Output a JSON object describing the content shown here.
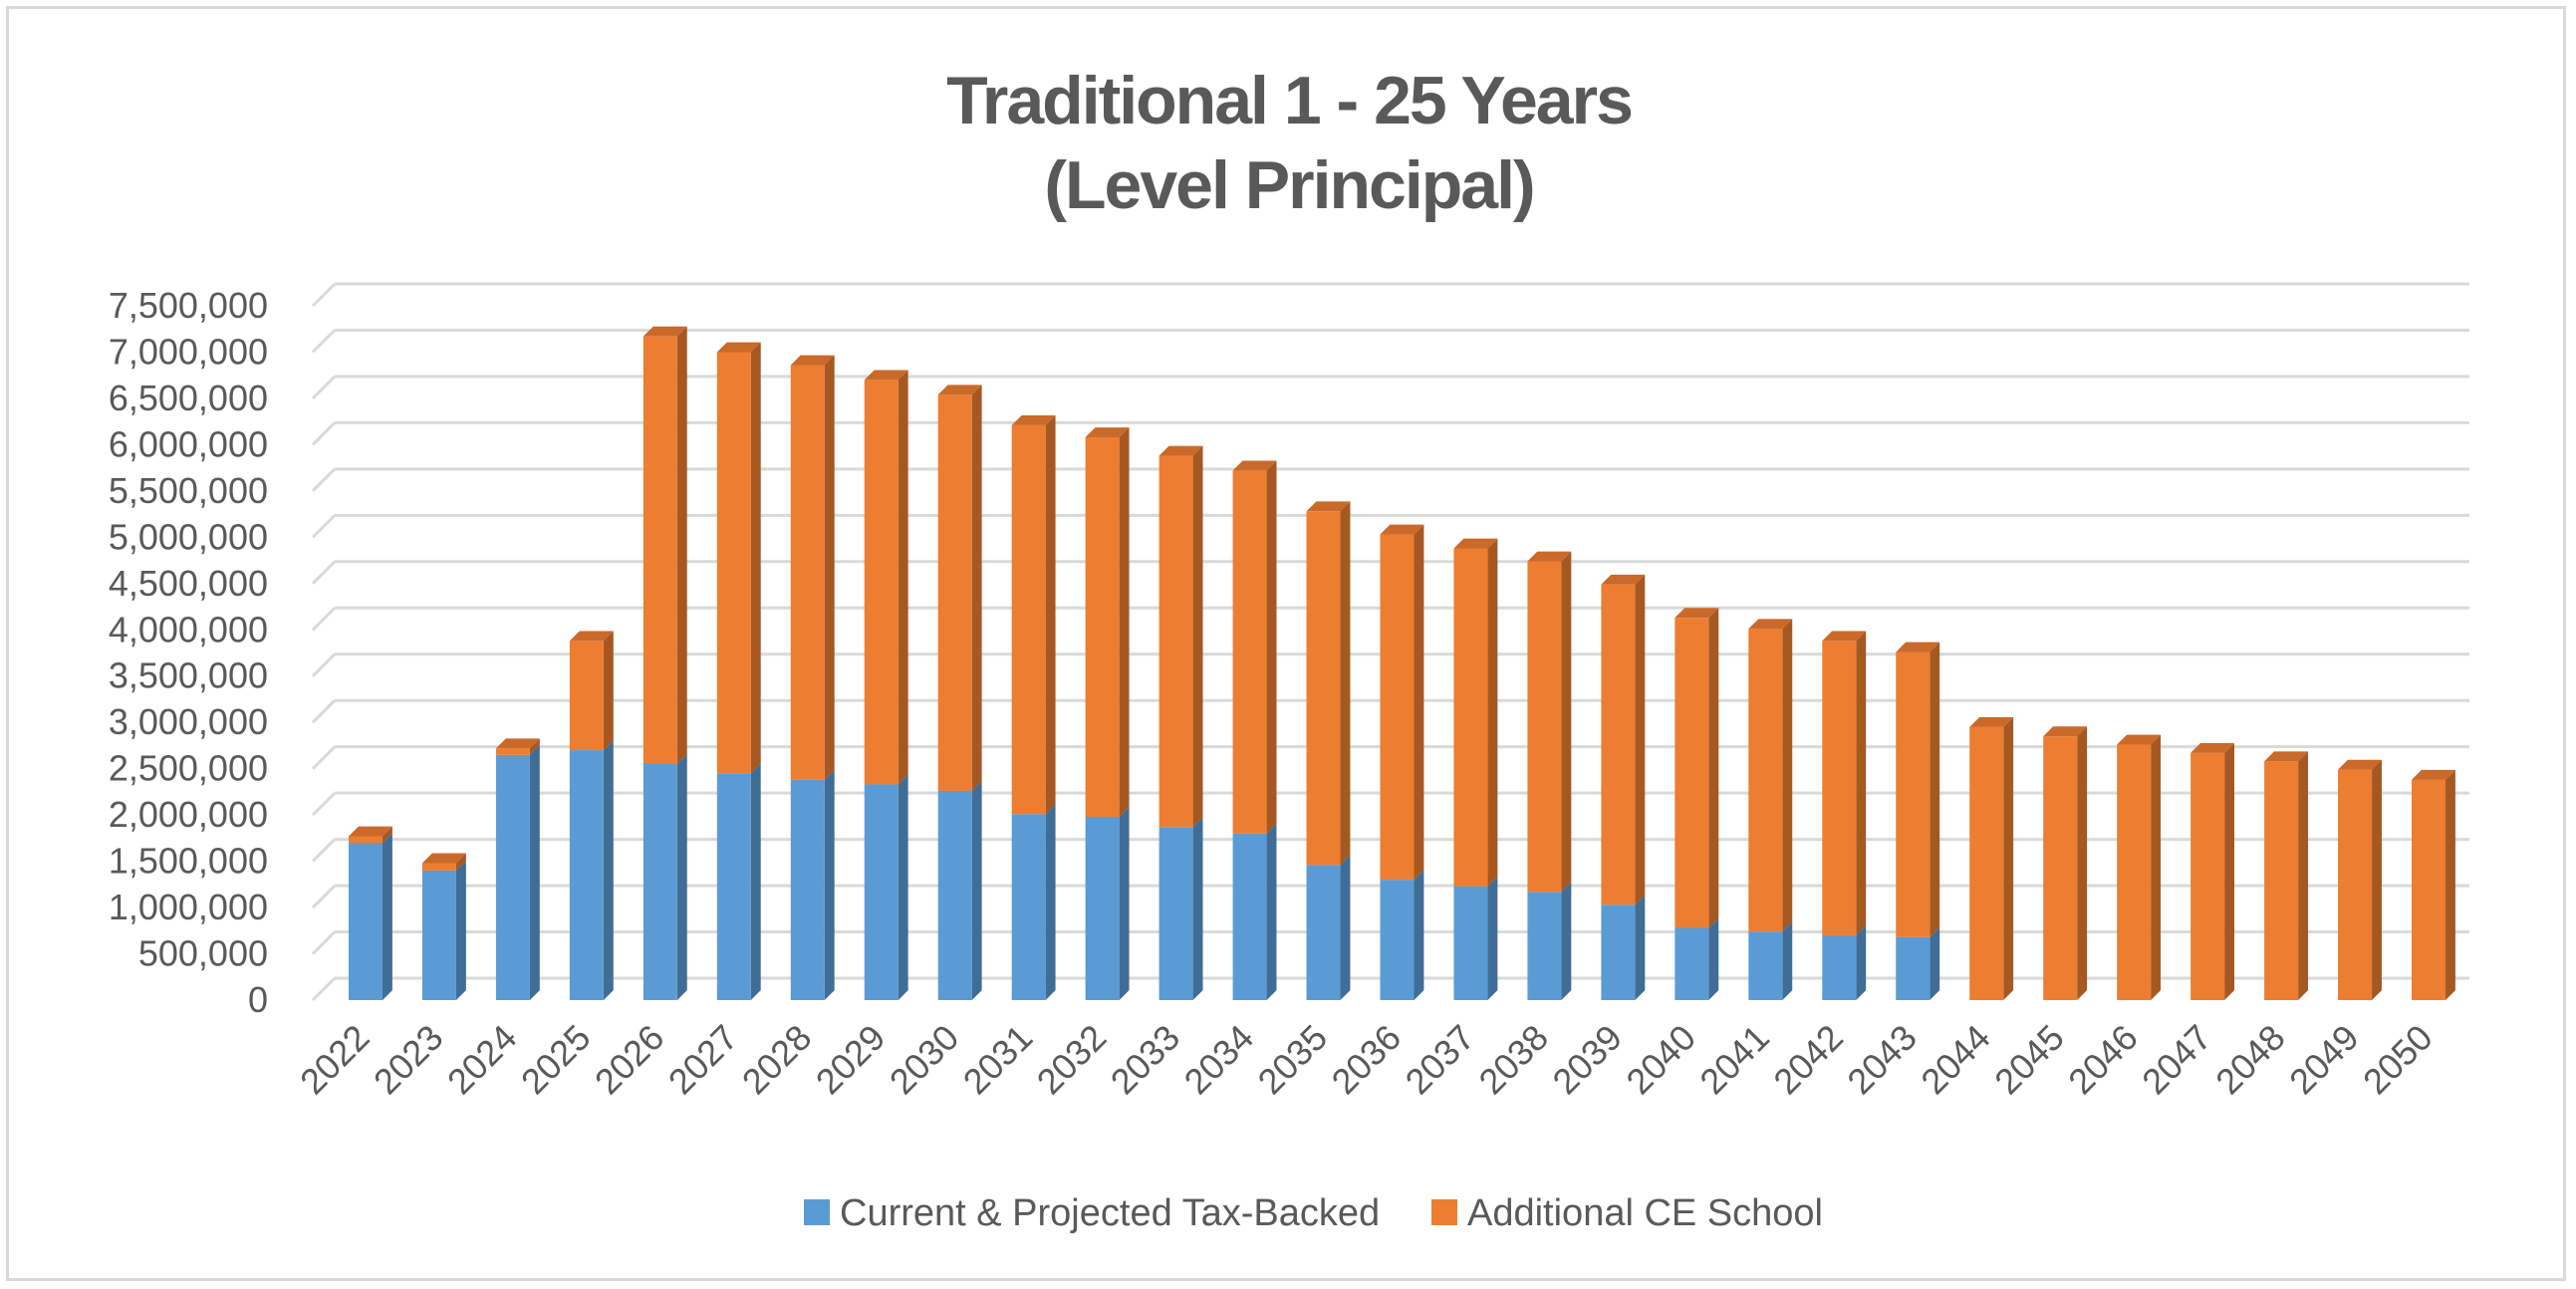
{
  "chart_data": {
    "type": "bar",
    "stacked": true,
    "title": "Traditional 1 - 25 Years",
    "subtitle": "(Level Principal)",
    "xlabel": "",
    "ylabel": "",
    "ylim": [
      0,
      7500000
    ],
    "ytick_step": 500000,
    "yticks": [
      "0",
      "500,000",
      "1,000,000",
      "1,500,000",
      "2,000,000",
      "2,500,000",
      "3,000,000",
      "3,500,000",
      "4,000,000",
      "4,500,000",
      "5,000,000",
      "5,500,000",
      "6,000,000",
      "6,500,000",
      "7,000,000",
      "7,500,000"
    ],
    "grid": true,
    "legend_position": "bottom",
    "categories": [
      "2022",
      "2023",
      "2024",
      "2025",
      "2026",
      "2027",
      "2028",
      "2029",
      "2030",
      "2031",
      "2032",
      "2033",
      "2034",
      "2035",
      "2036",
      "2037",
      "2038",
      "2039",
      "2040",
      "2041",
      "2042",
      "2043",
      "2044",
      "2045",
      "2046",
      "2047",
      "2048",
      "2049",
      "2050"
    ],
    "series": [
      {
        "name": "Current & Projected Tax-Backed",
        "color": "#5b9bd5",
        "values": [
          1700000,
          1400000,
          2650000,
          2700000,
          2550000,
          2450000,
          2380000,
          2330000,
          2260000,
          2010000,
          1980000,
          1870000,
          1800000,
          1460000,
          1300000,
          1230000,
          1170000,
          1030000,
          780000,
          740000,
          700000,
          680000,
          0,
          0,
          0,
          0,
          0,
          0,
          0
        ]
      },
      {
        "name": "Additional CE School",
        "color": "#ed7d31",
        "values": [
          70000,
          80000,
          70000,
          1180000,
          4620000,
          4550000,
          4480000,
          4370000,
          4280000,
          4200000,
          4100000,
          4010000,
          3920000,
          3820000,
          3730000,
          3650000,
          3570000,
          3460000,
          3350000,
          3270000,
          3180000,
          3080000,
          2950000,
          2850000,
          2760000,
          2670000,
          2580000,
          2490000,
          2380000
        ]
      }
    ]
  }
}
